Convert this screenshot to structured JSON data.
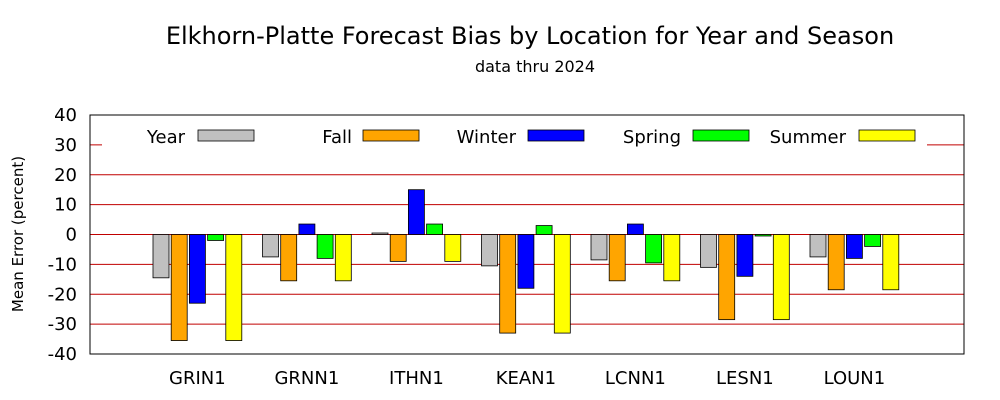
{
  "chart_data": {
    "type": "bar",
    "title": "Elkhorn-Platte Forecast Bias by Location for Year and Season",
    "subtitle": "data thru 2024",
    "xlabel": "",
    "ylabel": "Mean Error (percent)",
    "ylim": [
      -40,
      40
    ],
    "yticks": [
      40,
      30,
      20,
      10,
      0,
      -10,
      -20,
      -30,
      -40
    ],
    "grid": "horizontal red lines at each y tick",
    "legend_position": "top",
    "categories": [
      "GRIN1",
      "GRNN1",
      "ITHN1",
      "KEAN1",
      "LCNN1",
      "LESN1",
      "LOUN1"
    ],
    "series": [
      {
        "name": "Year",
        "color": "#c0c0c0",
        "values": [
          -14.5,
          -7.5,
          0.5,
          -10.5,
          -8.5,
          -11,
          -7.5
        ]
      },
      {
        "name": "Fall",
        "color": "#ffa500",
        "values": [
          -35.5,
          -15.5,
          -9,
          -33,
          -15.5,
          -28.5,
          -18.5
        ]
      },
      {
        "name": "Winter",
        "color": "#0000ff",
        "values": [
          -23,
          3.5,
          15,
          -18,
          3.5,
          -14,
          -8
        ]
      },
      {
        "name": "Spring",
        "color": "#00ff00",
        "values": [
          -2,
          -8,
          3.5,
          3,
          -9.5,
          -0.5,
          -4
        ]
      },
      {
        "name": "Summer",
        "color": "#ffff00",
        "values": [
          -35.5,
          -15.5,
          -9,
          -33,
          -15.5,
          -28.5,
          -18.5
        ]
      }
    ],
    "colors": {
      "grid": "#c00000",
      "axis": "#000000",
      "bar_outline": "#000000"
    }
  }
}
